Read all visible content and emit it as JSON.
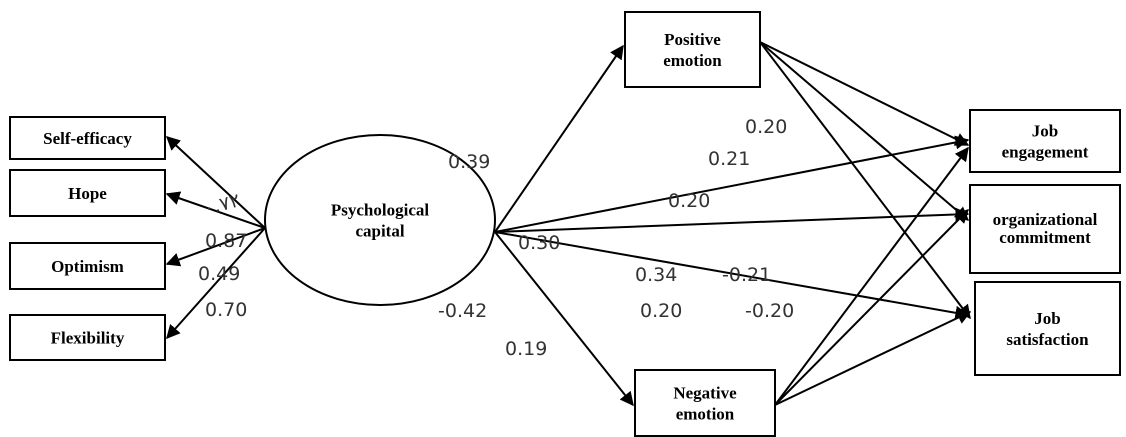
{
  "nodes": [
    {
      "label": [
        "Self-efficacy"
      ]
    },
    {
      "label": [
        "Hope"
      ]
    },
    {
      "label": [
        "Optimism"
      ]
    },
    {
      "label": [
        "Flexibility"
      ]
    },
    {
      "label": [
        "Psychological",
        "capital"
      ]
    },
    {
      "label": [
        "Positive",
        "emotion"
      ]
    },
    {
      "label": [
        "Negative",
        "emotion"
      ]
    },
    {
      "label": [
        "Job",
        "engagement"
      ]
    },
    {
      "label": [
        "organizational",
        "commitment"
      ]
    },
    {
      "label": [
        "Job",
        "satisfaction"
      ]
    }
  ],
  "coefficients": [
    "0.39",
    "۰.۷۲",
    "0.87",
    "0.49",
    "0.70",
    "-0.42",
    "0.19",
    "0.20",
    "0.21",
    "0.20",
    "0.30",
    "0.34",
    "-0.21",
    "0.20",
    "-0.20"
  ]
}
